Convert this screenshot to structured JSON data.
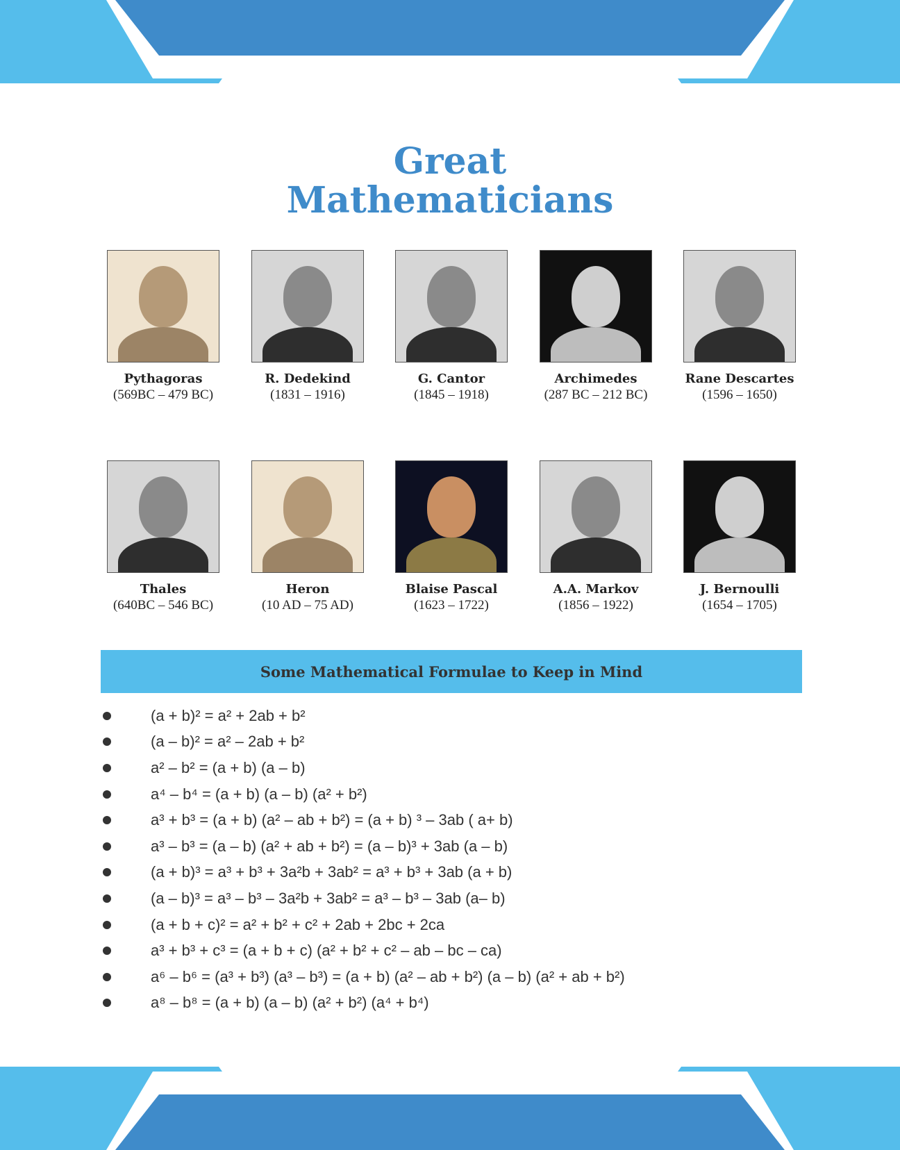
{
  "colors": {
    "light_blue": "#55BDEB",
    "dark_blue": "#3F8BCA",
    "title": "#3F8BCA"
  },
  "title": {
    "line1": "Great",
    "line2": "Mathematicians"
  },
  "mathematicians": [
    {
      "name": "Pythagoras",
      "dates": "(569BC – 479 BC)",
      "tone": "sepia"
    },
    {
      "name": "R. Dedekind",
      "dates": "(1831 – 1916)",
      "tone": "gray"
    },
    {
      "name": "G. Cantor",
      "dates": "(1845 – 1918)",
      "tone": "gray"
    },
    {
      "name": "Archimedes",
      "dates": "(287 BC – 212 BC)",
      "tone": "dark"
    },
    {
      "name": "Rane Descartes",
      "dates": "(1596 – 1650)",
      "tone": "gray"
    },
    {
      "name": "Thales",
      "dates": "(640BC – 546 BC)",
      "tone": "gray"
    },
    {
      "name": "Heron",
      "dates": "(10 AD – 75 AD)",
      "tone": "sepia"
    },
    {
      "name": "Blaise Pascal",
      "dates": "(1623 – 1722)",
      "tone": "color"
    },
    {
      "name": "A.A. Markov",
      "dates": "(1856 – 1922)",
      "tone": "gray"
    },
    {
      "name": "J. Bernoulli",
      "dates": "(1654 – 1705)",
      "tone": "dark"
    }
  ],
  "formula_heading": "Some Mathematical Formulae to Keep in Mind",
  "formulas": [
    "(a + b)² = a² + 2ab + b²",
    "(a – b)² = a² – 2ab + b²",
    "a² – b² = (a + b) (a – b)",
    "a⁴ – b⁴ = (a + b) (a – b) (a² + b²)",
    "a³ + b³ = (a + b) (a² – ab + b²) = (a + b) ³ – 3ab ( a+ b)",
    "a³ – b³ = (a – b) (a² + ab + b²) = (a – b)³ + 3ab (a – b)",
    "(a + b)³ = a³ + b³ + 3a²b + 3ab² = a³ + b³ + 3ab (a + b)",
    "(a – b)³ = a³ – b³ – 3a²b + 3ab² = a³ – b³ – 3ab (a– b)",
    "(a + b + c)² = a² + b² + c² + 2ab + 2bc + 2ca",
    "a³ + b³ + c³ = (a + b + c) (a² + b² + c² – ab – bc – ca)",
    "a⁶ – b⁶ = (a³ + b³) (a³ – b³) = (a + b) (a² – ab + b²) (a – b) (a² + ab + b²)",
    "a⁸ – b⁸ = (a + b) (a – b) (a² + b²) (a⁴ + b⁴)"
  ]
}
